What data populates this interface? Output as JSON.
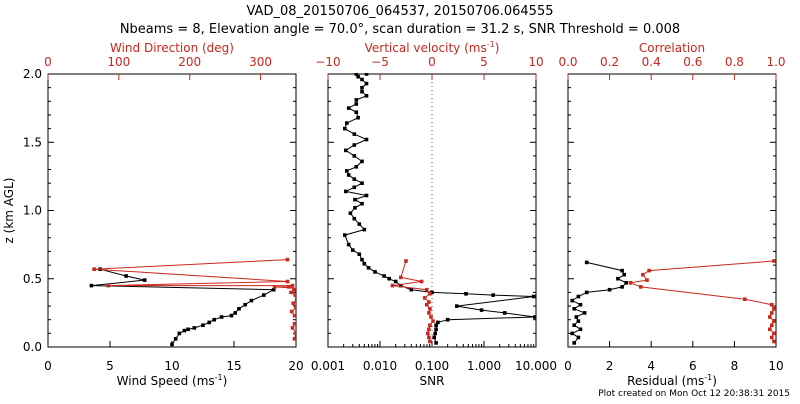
{
  "title_line1": "VAD_08_20150706_064537, 20150706.064555",
  "title_line2": "Nbeams = 8, Elevation angle = 70.0°, scan duration = 31.2 s, SNR Threshold = 0.008",
  "footer": "Plot created on Mon Oct 12 20:38:31 2015",
  "colors": {
    "primary": "#000000",
    "secondary": "#c8281e"
  },
  "chart_data": [
    {
      "type": "line",
      "panel": "wind",
      "ylabel": "z (km AGL)",
      "ylim": [
        0,
        2.0
      ],
      "yticks": [
        "0.0",
        "0.5",
        "1.0",
        "1.5",
        "2.0"
      ],
      "bottom_axis": {
        "label": "Wind Speed (ms",
        "label_sup": "-1",
        "label_end": ")",
        "lim": [
          0,
          20
        ],
        "ticks": [
          "0",
          "5",
          "10",
          "15",
          "20"
        ]
      },
      "top_axis": {
        "label": "Wind Direction (deg)",
        "lim": [
          0,
          350
        ],
        "ticks": [
          "0",
          "100",
          "200",
          "300"
        ]
      },
      "series": [
        {
          "axis": "bottom",
          "color": "black",
          "x": [
            10.0,
            10.3,
            10.6,
            11.0,
            11.3,
            11.8,
            12.5,
            13.0,
            13.4,
            14.0,
            14.8,
            15.1,
            15.4,
            15.9,
            16.4,
            17.4,
            18.2,
            3.5,
            7.8,
            6.3,
            4.2
          ],
          "y": [
            0.02,
            0.06,
            0.1,
            0.12,
            0.13,
            0.14,
            0.16,
            0.18,
            0.2,
            0.22,
            0.23,
            0.25,
            0.28,
            0.31,
            0.34,
            0.38,
            0.42,
            0.45,
            0.49,
            0.52,
            0.57
          ]
        },
        {
          "axis": "top",
          "color": "red",
          "x": [
            348,
            350,
            345,
            348,
            352,
            348,
            344,
            350,
            346,
            351,
            349,
            343,
            347,
            352,
            320,
            340,
            345,
            85,
            338,
            65,
            338
          ],
          "y": [
            0.06,
            0.1,
            0.14,
            0.17,
            0.2,
            0.23,
            0.26,
            0.29,
            0.32,
            0.35,
            0.38,
            0.4,
            0.42,
            0.43,
            0.44,
            0.44,
            0.45,
            0.45,
            0.48,
            0.57,
            0.64
          ]
        }
      ]
    },
    {
      "type": "line",
      "panel": "snr",
      "ylim": [
        0,
        2.0
      ],
      "bottom_axis": {
        "label": "SNR",
        "scale": "log",
        "lim": [
          0.001,
          10
        ],
        "ticks": [
          "0.001",
          "0.010",
          "0.100",
          "1.000",
          "10.000"
        ]
      },
      "top_axis": {
        "label": "Vertical velocity (ms",
        "label_sup": "-1",
        "label_end": ")",
        "lim": [
          -10,
          10
        ],
        "ticks": [
          "−10",
          "−5",
          "0",
          "5",
          "10"
        ]
      },
      "reference_line": {
        "axis": "top",
        "x": 0,
        "style": "dotted",
        "color": "red"
      },
      "series": [
        {
          "axis": "bottom",
          "color": "black",
          "x": [
            0.12,
            0.11,
            0.115,
            0.12,
            0.12,
            0.13,
            0.2,
            9.5,
            2.5,
            0.9,
            0.3,
            9.0,
            1.5,
            0.45,
            0.1,
            0.04,
            0.025,
            0.02,
            0.015,
            0.012,
            0.008,
            0.006,
            0.005,
            0.0045,
            0.004,
            0.003,
            0.0025,
            0.0021,
            0.005,
            0.004,
            0.0032,
            0.0027,
            0.0033,
            0.0045,
            0.0033,
            0.0055,
            0.0022,
            0.0032,
            0.0045,
            0.0032,
            0.0025,
            0.0023,
            0.0035,
            0.0045,
            0.0032,
            0.0022,
            0.0032,
            0.0055,
            0.0032,
            0.0021,
            0.0023,
            0.0038,
            0.0035,
            0.0025,
            0.0035,
            0.0035,
            0.0055,
            0.0045,
            0.0045,
            0.0055,
            0.0045,
            0.0038,
            0.0035,
            0.0055
          ],
          "y": [
            0.03,
            0.07,
            0.1,
            0.13,
            0.16,
            0.18,
            0.2,
            0.22,
            0.25,
            0.27,
            0.3,
            0.37,
            0.38,
            0.39,
            0.4,
            0.42,
            0.45,
            0.48,
            0.5,
            0.52,
            0.55,
            0.58,
            0.61,
            0.64,
            0.68,
            0.71,
            0.75,
            0.82,
            0.86,
            0.9,
            0.94,
            0.98,
            1.02,
            1.05,
            1.08,
            1.11,
            1.14,
            1.17,
            1.2,
            1.23,
            1.26,
            1.29,
            1.32,
            1.36,
            1.4,
            1.44,
            1.48,
            1.52,
            1.56,
            1.6,
            1.64,
            1.68,
            1.72,
            1.75,
            1.78,
            1.81,
            1.84,
            1.87,
            1.9,
            1.93,
            1.96,
            1.98,
            2.0,
            2.0
          ]
        },
        {
          "axis": "top",
          "color": "red",
          "x": [
            -0.2,
            -0.3,
            -0.4,
            -0.3,
            -0.2,
            0.1,
            -0.1,
            -0.3,
            -0.2,
            -0.5,
            -0.3,
            -0.7,
            -0.2,
            -0.5,
            -3.8,
            -1.0,
            -3.0,
            -2.5
          ],
          "y": [
            0.04,
            0.07,
            0.1,
            0.13,
            0.16,
            0.19,
            0.22,
            0.25,
            0.28,
            0.31,
            0.33,
            0.36,
            0.39,
            0.42,
            0.45,
            0.48,
            0.51,
            0.63
          ]
        }
      ]
    },
    {
      "type": "line",
      "panel": "residual",
      "ylim": [
        0,
        2.0
      ],
      "bottom_axis": {
        "label": "Residual (ms",
        "label_sup": "-1",
        "label_end": ")",
        "lim": [
          0,
          10
        ],
        "ticks": [
          "0",
          "2",
          "4",
          "6",
          "8",
          "10"
        ]
      },
      "top_axis": {
        "label": "Correlation",
        "lim": [
          0,
          1.0
        ],
        "ticks": [
          "0.0",
          "0.2",
          "0.4",
          "0.6",
          "0.8",
          "1.0"
        ]
      },
      "series": [
        {
          "axis": "bottom",
          "color": "black",
          "x": [
            0.3,
            0.5,
            0.2,
            0.6,
            0.3,
            0.5,
            0.4,
            0.8,
            0.3,
            0.6,
            0.2,
            0.5,
            0.9,
            2.0,
            2.6,
            2.8,
            2.4,
            2.7,
            2.6,
            0.9
          ],
          "y": [
            0.03,
            0.07,
            0.1,
            0.13,
            0.16,
            0.19,
            0.22,
            0.25,
            0.28,
            0.31,
            0.34,
            0.37,
            0.4,
            0.42,
            0.44,
            0.47,
            0.5,
            0.53,
            0.56,
            0.62
          ]
        },
        {
          "axis": "top",
          "color": "red",
          "x": [
            0.99,
            0.98,
            0.99,
            0.97,
            0.98,
            0.99,
            0.97,
            0.98,
            0.99,
            0.98,
            0.85,
            0.35,
            0.3,
            0.38,
            0.36,
            0.39,
            0.99
          ],
          "y": [
            0.04,
            0.07,
            0.1,
            0.13,
            0.16,
            0.19,
            0.22,
            0.25,
            0.28,
            0.31,
            0.35,
            0.44,
            0.47,
            0.49,
            0.53,
            0.56,
            0.63
          ]
        }
      ]
    }
  ]
}
